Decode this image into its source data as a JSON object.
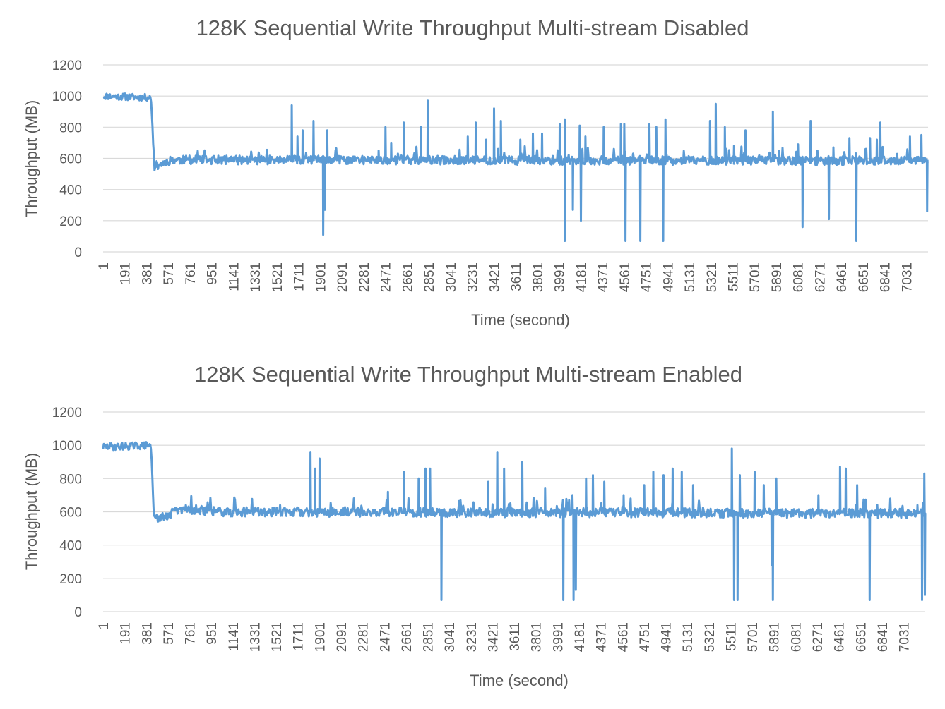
{
  "chart_data": [
    {
      "type": "line",
      "title": "128K Sequential Write Throughput Multi-stream Disabled",
      "xlabel": "Time (second)",
      "ylabel": "Throughput (MB)",
      "ylim": [
        0,
        1200
      ],
      "yticks": [
        0,
        200,
        400,
        600,
        800,
        1000,
        1200
      ],
      "xticks": [
        1,
        191,
        381,
        571,
        761,
        951,
        1141,
        1331,
        1521,
        1711,
        1901,
        2091,
        2281,
        2471,
        2661,
        2851,
        3041,
        3231,
        3421,
        3611,
        3801,
        3991,
        4181,
        4371,
        4561,
        4751,
        4941,
        5131,
        5321,
        5511,
        5701,
        5891,
        6081,
        6271,
        6461,
        6651,
        6841,
        7031
      ],
      "xlim": [
        1,
        7220
      ],
      "grid": true,
      "color": "#5B9BD5",
      "series": [
        {
          "baseline": [
            [
              1,
              1000
            ],
            [
              420,
              990
            ],
            [
              450,
              550
            ],
            [
              600,
              590
            ],
            [
              7220,
              585
            ]
          ],
          "spikes": [
            [
              1650,
              940
            ],
            [
              1700,
              740
            ],
            [
              1745,
              780
            ],
            [
              1840,
              840
            ],
            [
              1960,
              780
            ],
            [
              2410,
              650
            ],
            [
              2470,
              800
            ],
            [
              2520,
              700
            ],
            [
              2630,
              830
            ],
            [
              2780,
              800
            ],
            [
              2840,
              970
            ],
            [
              3190,
              740
            ],
            [
              3260,
              830
            ],
            [
              3350,
              720
            ],
            [
              3420,
              920
            ],
            [
              3480,
              840
            ],
            [
              3650,
              720
            ],
            [
              3760,
              760
            ],
            [
              3840,
              760
            ],
            [
              3995,
              820
            ],
            [
              4040,
              850
            ],
            [
              4170,
              810
            ],
            [
              4220,
              740
            ],
            [
              4380,
              800
            ],
            [
              4530,
              820
            ],
            [
              4560,
              820
            ],
            [
              4780,
              820
            ],
            [
              4840,
              800
            ],
            [
              4920,
              850
            ],
            [
              5310,
              840
            ],
            [
              5360,
              950
            ],
            [
              5440,
              800
            ],
            [
              5520,
              680
            ],
            [
              5620,
              780
            ],
            [
              5860,
              900
            ],
            [
              6080,
              690
            ],
            [
              6190,
              840
            ],
            [
              6250,
              650
            ],
            [
              6390,
              670
            ],
            [
              6530,
              730
            ],
            [
              6710,
              730
            ],
            [
              6770,
              720
            ],
            [
              6800,
              830
            ],
            [
              7060,
              740
            ],
            [
              7160,
              750
            ]
          ],
          "dips": [
            [
              1925,
              110
            ],
            [
              1940,
              270
            ],
            [
              4040,
              70
            ],
            [
              4110,
              270
            ],
            [
              4180,
              200
            ],
            [
              4570,
              70
            ],
            [
              4700,
              70
            ],
            [
              4900,
              70
            ],
            [
              6120,
              160
            ],
            [
              6350,
              210
            ],
            [
              6590,
              70
            ],
            [
              7210,
              260
            ]
          ]
        }
      ]
    },
    {
      "type": "line",
      "title": "128K Sequential Write Throughput Multi-stream Enabled",
      "xlabel": "Time (second)",
      "ylabel": "Throughput (MB)",
      "ylim": [
        0,
        1200
      ],
      "yticks": [
        0,
        200,
        400,
        600,
        800,
        1000,
        1200
      ],
      "xticks": [
        1,
        191,
        381,
        571,
        761,
        951,
        1141,
        1331,
        1521,
        1711,
        1901,
        2091,
        2281,
        2471,
        2661,
        2851,
        3041,
        3231,
        3421,
        3611,
        3801,
        3991,
        4181,
        4371,
        4561,
        4751,
        4941,
        5131,
        5321,
        5511,
        5701,
        5891,
        6081,
        6271,
        6461,
        6651,
        6841,
        7031
      ],
      "xlim": [
        1,
        7220
      ],
      "grid": true,
      "color": "#5B9BD5",
      "series": [
        {
          "baseline": [
            [
              1,
              990
            ],
            [
              420,
              1000
            ],
            [
              450,
              550
            ],
            [
              700,
              620
            ],
            [
              1000,
              600
            ],
            [
              7220,
              590
            ]
          ],
          "spikes": [
            [
              1820,
              960
            ],
            [
              1860,
              860
            ],
            [
              1900,
              920
            ],
            [
              2500,
              720
            ],
            [
              2640,
              840
            ],
            [
              2770,
              800
            ],
            [
              2830,
              860
            ],
            [
              2870,
              860
            ],
            [
              3380,
              780
            ],
            [
              3460,
              960
            ],
            [
              3520,
              860
            ],
            [
              3680,
              900
            ],
            [
              3880,
              740
            ],
            [
              4120,
              700
            ],
            [
              4240,
              800
            ],
            [
              4300,
              820
            ],
            [
              4400,
              780
            ],
            [
              4570,
              700
            ],
            [
              4750,
              760
            ],
            [
              4830,
              840
            ],
            [
              4920,
              820
            ],
            [
              5000,
              860
            ],
            [
              5080,
              840
            ],
            [
              5180,
              760
            ],
            [
              5520,
              980
            ],
            [
              5590,
              820
            ],
            [
              5720,
              840
            ],
            [
              5800,
              760
            ],
            [
              5910,
              800
            ],
            [
              6280,
              700
            ],
            [
              6470,
              870
            ],
            [
              6520,
              860
            ],
            [
              6620,
              760
            ],
            [
              7150,
              640
            ],
            [
              7210,
              830
            ]
          ],
          "dips": [
            [
              2970,
              70
            ],
            [
              4040,
              70
            ],
            [
              4130,
              70
            ],
            [
              4150,
              130
            ],
            [
              5540,
              70
            ],
            [
              5570,
              70
            ],
            [
              5870,
              280
            ],
            [
              5880,
              70
            ],
            [
              6730,
              70
            ],
            [
              7190,
              70
            ],
            [
              7215,
              100
            ]
          ]
        }
      ]
    }
  ]
}
